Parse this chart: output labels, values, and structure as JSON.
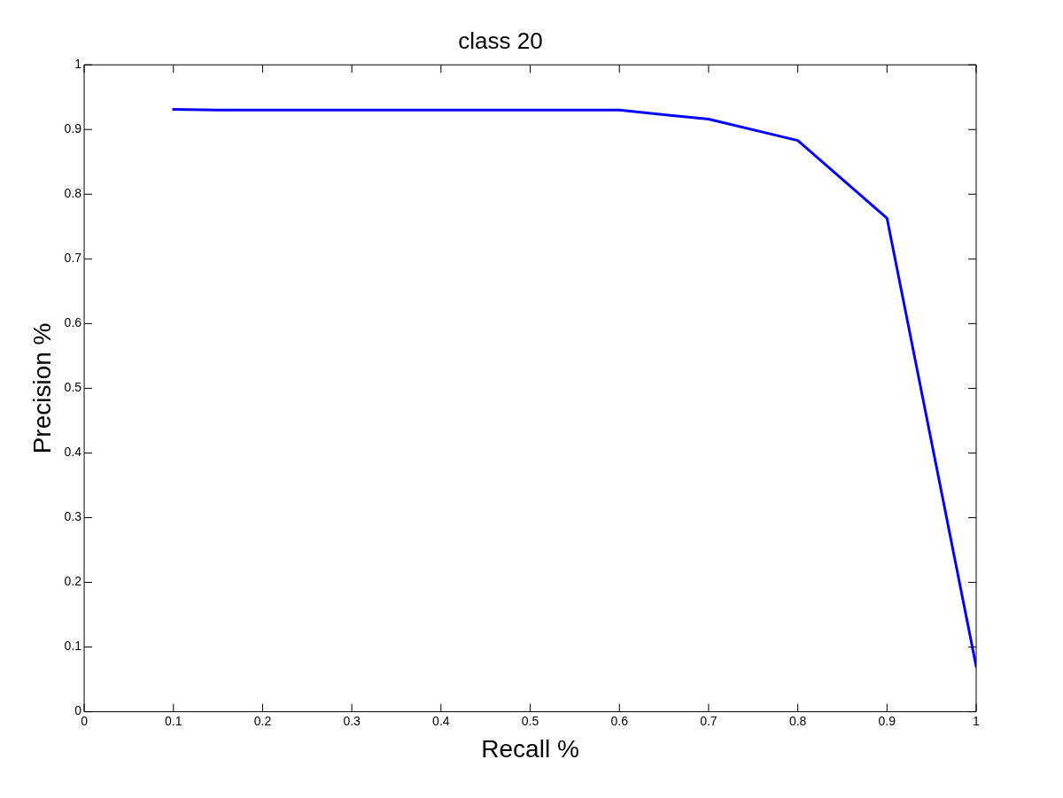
{
  "chart_data": {
    "type": "line",
    "title": "class 20",
    "xlabel": "Recall %",
    "ylabel": "Precision %",
    "x": [
      0.1,
      0.15,
      0.6,
      0.7,
      0.8,
      0.9,
      1.0
    ],
    "series": [
      {
        "color": "#0000ff",
        "values": [
          0.931,
          0.93,
          0.93,
          0.916,
          0.883,
          0.763,
          0.07
        ]
      }
    ],
    "xlim": [
      0,
      1
    ],
    "ylim": [
      0,
      1
    ],
    "xticks": [
      0,
      0.1,
      0.2,
      0.3,
      0.4,
      0.5,
      0.6,
      0.7,
      0.8,
      0.9,
      1
    ],
    "yticks": [
      0,
      0.1,
      0.2,
      0.3,
      0.4,
      0.5,
      0.6,
      0.7,
      0.8,
      0.9,
      1
    ],
    "grid": false,
    "legend": false,
    "marker": "none",
    "line_style": "solid"
  }
}
